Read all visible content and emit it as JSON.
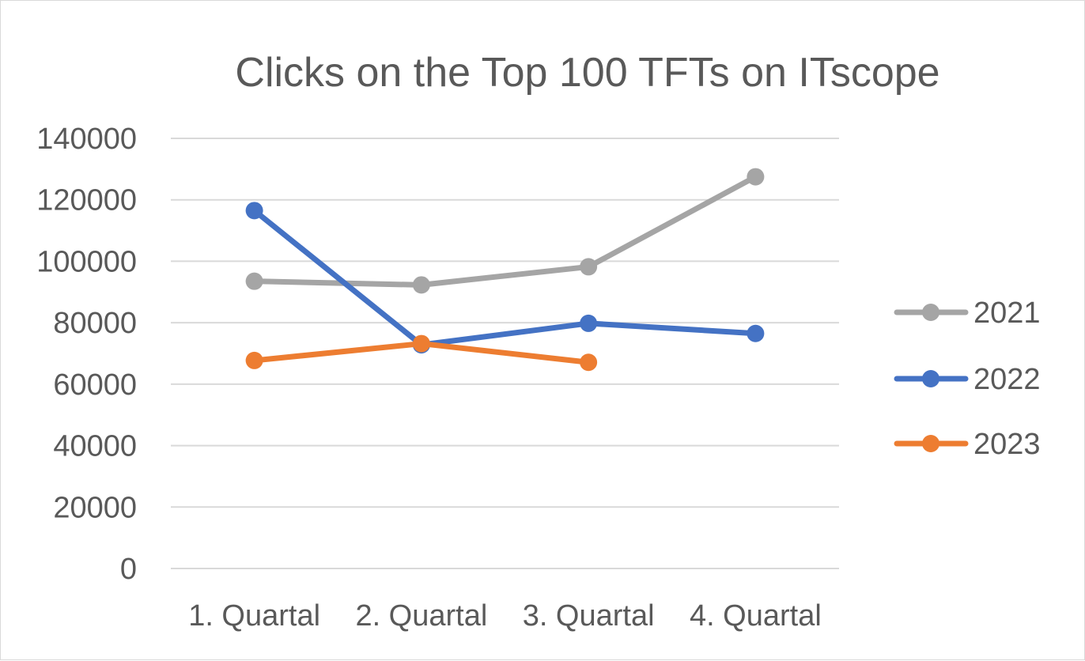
{
  "chart_data": {
    "type": "line",
    "title": "Clicks on the Top 100 TFTs on ITscope",
    "xlabel": "",
    "ylabel": "",
    "categories": [
      "1. Quartal",
      "2. Quartal",
      "3. Quartal",
      "4. Quartal"
    ],
    "ylim": [
      0,
      140000
    ],
    "yticks": [
      "0",
      "20000",
      "40000",
      "60000",
      "80000",
      "100000",
      "120000",
      "140000"
    ],
    "grid": true,
    "legend_position": "right",
    "series": [
      {
        "name": "2021",
        "color": "#a5a5a5",
        "values": [
          93500,
          92300,
          98200,
          127500
        ]
      },
      {
        "name": "2022",
        "color": "#4472c4",
        "values": [
          116500,
          72800,
          79800,
          76500
        ]
      },
      {
        "name": "2023",
        "color": "#ed7d31",
        "values": [
          67700,
          73200,
          67100,
          null
        ]
      }
    ]
  }
}
